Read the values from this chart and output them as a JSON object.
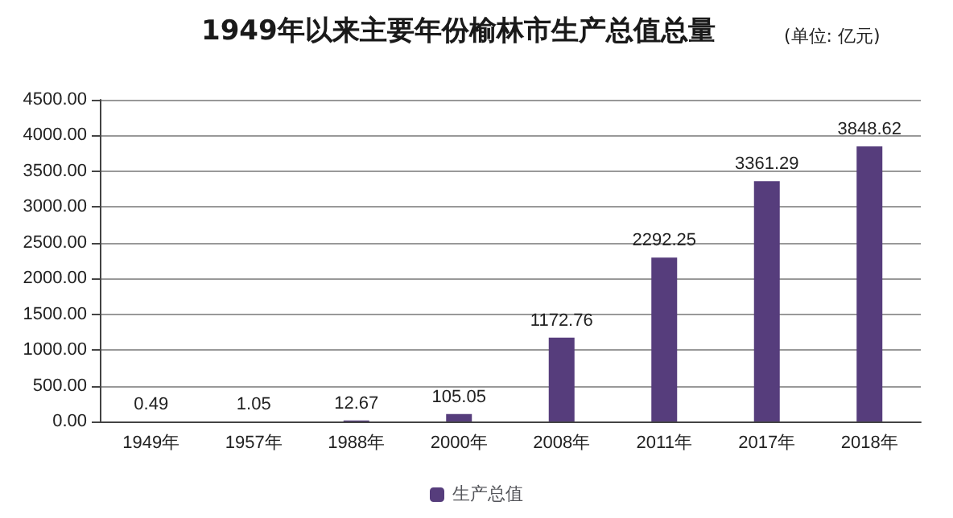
{
  "chart_data": {
    "type": "bar",
    "title": "1949年以来主要年份榆林市生产总值总量",
    "subtitle": "(单位: 亿元)",
    "categories": [
      "1949年",
      "1957年",
      "1988年",
      "2000年",
      "2008年",
      "2011年",
      "2017年",
      "2018年"
    ],
    "series": [
      {
        "name": "生产总值",
        "color": "#563d7c",
        "values": [
          0.49,
          1.05,
          12.67,
          105.05,
          1172.76,
          2292.25,
          3361.29,
          3848.62
        ]
      }
    ],
    "ylim": [
      0,
      4500
    ],
    "yticks": [
      {
        "value": 0,
        "label": "0.00"
      },
      {
        "value": 500,
        "label": "500.00"
      },
      {
        "value": 1000,
        "label": "1000.00"
      },
      {
        "value": 1500,
        "label": "1500.00"
      },
      {
        "value": 2000,
        "label": "2000.00"
      },
      {
        "value": 2500,
        "label": "2500.00"
      },
      {
        "value": 3000,
        "label": "3000.00"
      },
      {
        "value": 3500,
        "label": "3500.00"
      },
      {
        "value": 4000,
        "label": "4000.00"
      },
      {
        "value": 4500,
        "label": "4500.00"
      }
    ],
    "grid": "y",
    "legend": "bottom",
    "data_labels": true
  }
}
